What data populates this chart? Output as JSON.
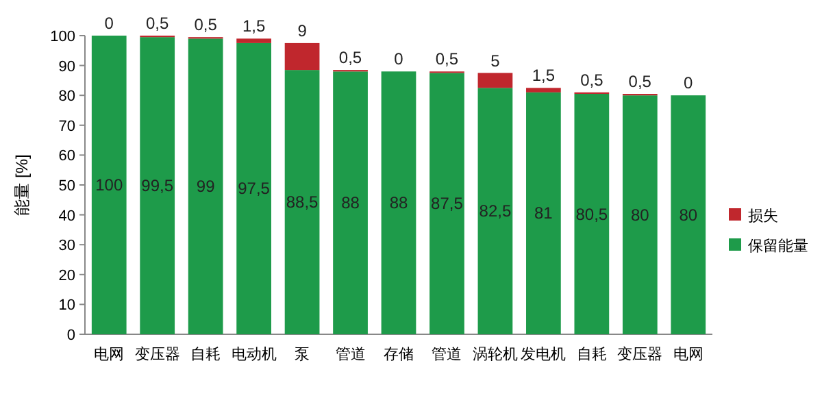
{
  "chart_data": {
    "type": "bar",
    "stacked": true,
    "ylabel": "能量 [%]",
    "categories": [
      "电网",
      "变压器",
      "自耗",
      "电动机",
      "泵",
      "管道",
      "存储",
      "管道",
      "涡轮机",
      "发电机",
      "自耗",
      "变压器",
      "电网"
    ],
    "series": [
      {
        "name": "保留能量",
        "color": "#1e9b4a",
        "values": [
          100,
          99.5,
          99,
          97.5,
          88.5,
          88,
          88,
          87.5,
          82.5,
          81,
          80.5,
          80,
          80
        ],
        "value_labels": [
          "100",
          "99,5",
          "99",
          "97,5",
          "88,5",
          "88",
          "88",
          "87,5",
          "82,5",
          "81",
          "80,5",
          "80",
          "80"
        ]
      },
      {
        "name": "损失",
        "color": "#c0272d",
        "values": [
          0,
          0.5,
          0.5,
          1.5,
          9,
          0.5,
          0,
          0.5,
          5,
          1.5,
          0.5,
          0.5,
          0
        ],
        "value_labels": [
          "0",
          "0,5",
          "0,5",
          "1,5",
          "9",
          "0,5",
          "0",
          "0,5",
          "5",
          "1,5",
          "0,5",
          "0,5",
          "0"
        ]
      }
    ],
    "ylim": [
      0,
      100
    ],
    "yticks": [
      0,
      10,
      20,
      30,
      40,
      50,
      60,
      70,
      80,
      90,
      100
    ],
    "legend": "right"
  }
}
